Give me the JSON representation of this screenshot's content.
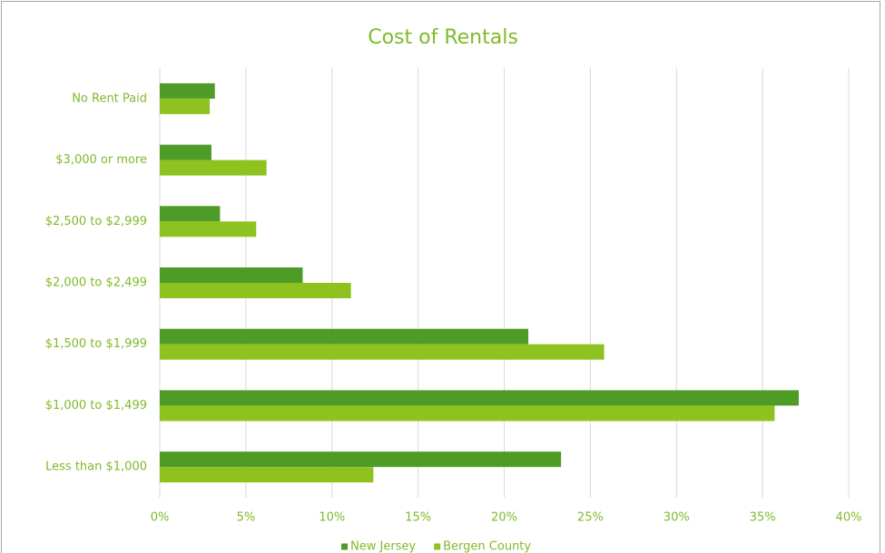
{
  "chart_data": {
    "type": "hbar",
    "title": "Cost of Rentals",
    "categories": [
      "No Rent Paid",
      "$3,000 or more",
      "$2,500 to $2,999",
      "$2,000 to $2,499",
      "$1,500 to $1,999",
      "$1,000 to $1,499",
      "Less than $1,000"
    ],
    "series": [
      {
        "name": "New Jersey",
        "color": "#4e9c27",
        "values": [
          3.2,
          3.0,
          3.5,
          8.3,
          21.4,
          37.1,
          23.3
        ]
      },
      {
        "name": "Bergen County",
        "color": "#8ec21f",
        "values": [
          2.9,
          6.2,
          5.6,
          11.1,
          25.8,
          35.7,
          12.4
        ]
      }
    ],
    "xlim": [
      0,
      40
    ],
    "xticks": [
      {
        "value": 0,
        "label": "0%"
      },
      {
        "value": 5,
        "label": "5%"
      },
      {
        "value": 10,
        "label": "10%"
      },
      {
        "value": 15,
        "label": "15%"
      },
      {
        "value": 20,
        "label": "20%"
      },
      {
        "value": 25,
        "label": "25%"
      },
      {
        "value": 30,
        "label": "30%"
      },
      {
        "value": 35,
        "label": "35%"
      },
      {
        "value": 40,
        "label": "40%"
      }
    ],
    "grid": true,
    "legend": "bottom"
  }
}
